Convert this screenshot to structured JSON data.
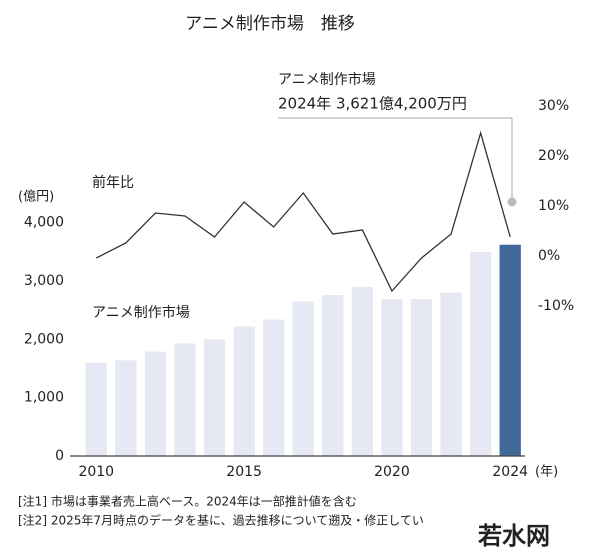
{
  "chart_data": {
    "type": "bar-line",
    "title": "アニメ制作市場　推移",
    "annotation": {
      "title": "アニメ制作市場",
      "text": "2024年 3,621億4,200万円"
    },
    "y_label": "(億円)",
    "x_label": "(年)",
    "x": [
      2010,
      2011,
      2012,
      2013,
      2014,
      2015,
      2016,
      2017,
      2018,
      2019,
      2020,
      2021,
      2022,
      2023,
      2024
    ],
    "xlim": [
      2009.45,
      2024.5
    ],
    "xticks": [
      2010,
      2015,
      2020,
      2024
    ],
    "ylim": [
      0,
      6000
    ],
    "yticks": [
      0,
      {
        "value": 1000,
        "label": "1,000"
      },
      {
        "value": 2000,
        "label": "2,000"
      },
      {
        "value": 3000,
        "label": "3,000"
      },
      {
        "value": 4000,
        "label": "4,000"
      }
    ],
    "y2lim": [
      -40,
      30
    ],
    "y2ticks": [
      {
        "value": 30,
        "label": "30%"
      },
      {
        "value": 20,
        "label": "20%"
      },
      {
        "value": 10,
        "label": "10%"
      },
      {
        "value": 0,
        "label": "0%"
      },
      {
        "value": -10,
        "label": "-10%"
      }
    ],
    "grid": false,
    "series": [
      {
        "name": "アニメ制作市場",
        "type": "bar",
        "colors": [
          "#e6e9f3",
          "#e6e9f3",
          "#e6e9f3",
          "#e6e9f3",
          "#e6e9f3",
          "#e6e9f3",
          "#e6e9f3",
          "#e6e9f3",
          "#e6e9f3",
          "#e6e9f3",
          "#e6e9f3",
          "#e6e9f3",
          "#e6e9f3",
          "#e6e9f3",
          "#41699a"
        ],
        "values": [
          1600,
          1640,
          1790,
          1930,
          2000,
          2220,
          2340,
          2650,
          2760,
          2900,
          2690,
          2690,
          2800,
          3500,
          3621.42
        ]
      },
      {
        "name": "前年比",
        "type": "line",
        "axis": "y2",
        "color": "#333333",
        "values": [
          -0.4,
          2.6,
          8.6,
          8,
          3.8,
          10.8,
          5.8,
          12.6,
          4.4,
          5.2,
          -7,
          -0.4,
          4.4,
          24.6,
          3.8
        ]
      }
    ]
  },
  "notes": [
    "[注1]  市場は事業者売上高ベース。2024年は一部推計値を含む",
    "[注2]  2025年7月時点のデータを基に、過去推移について遡及・修正してい"
  ],
  "watermark": "若水网"
}
